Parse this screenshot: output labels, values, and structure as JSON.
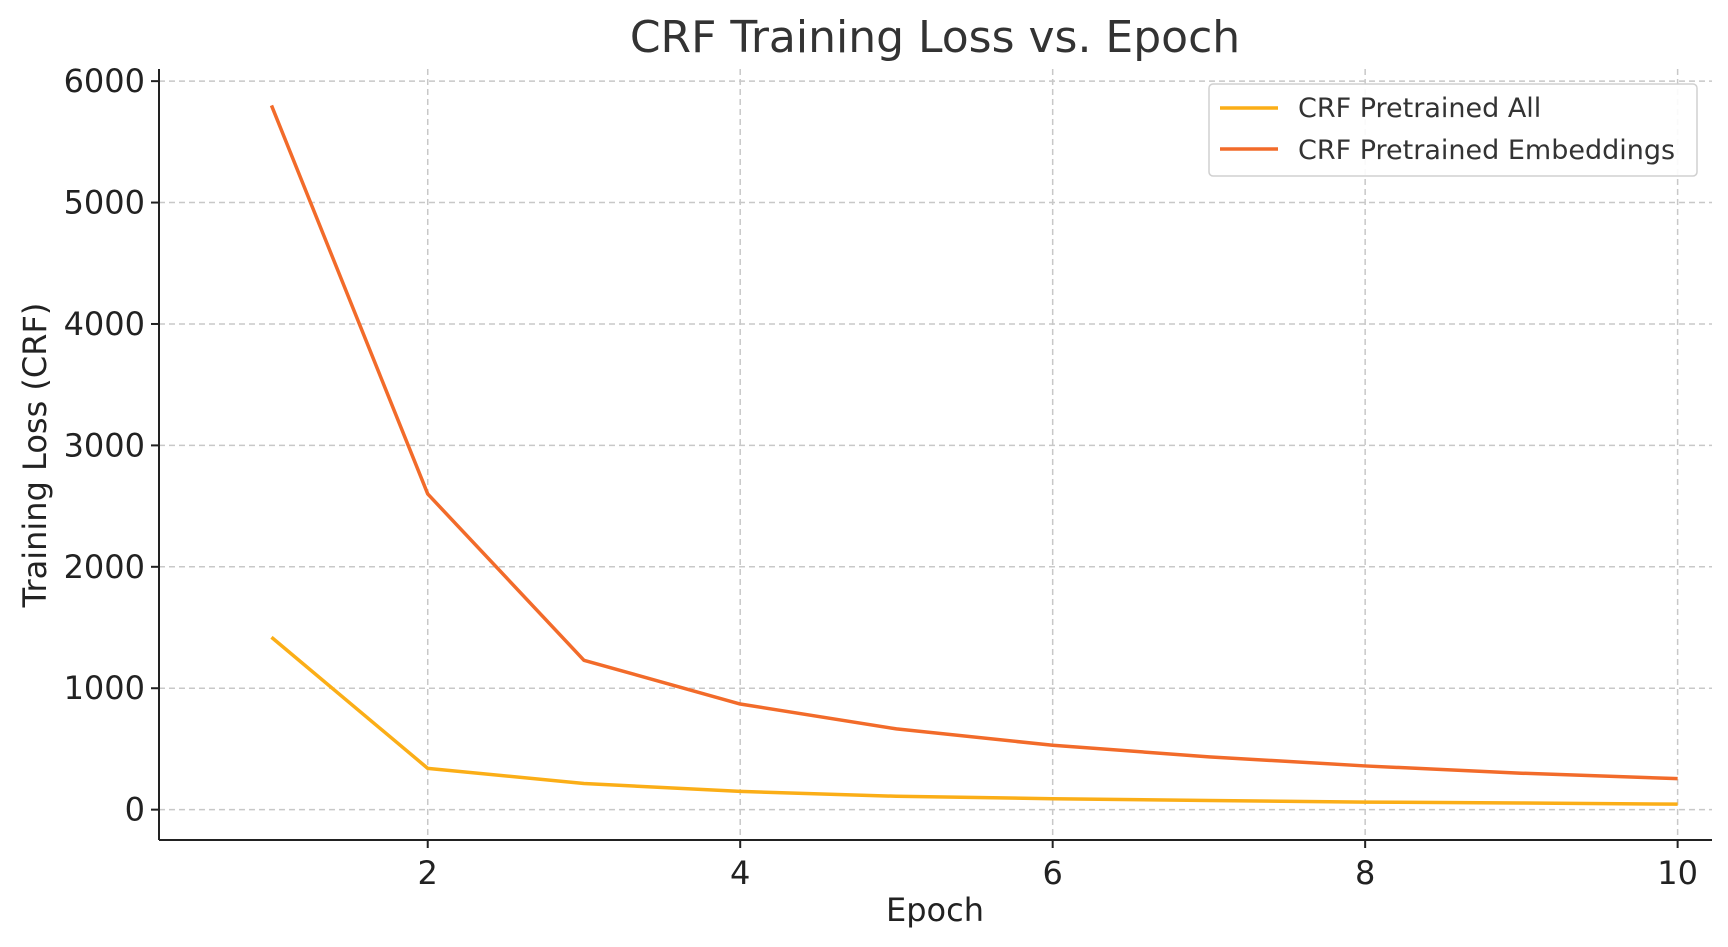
{
  "chart_data": {
    "type": "line",
    "title": "CRF Training Loss vs. Epoch",
    "xlabel": "Epoch",
    "ylabel": "Training Loss (CRF)",
    "x": [
      1,
      2,
      3,
      4,
      5,
      6,
      7,
      8,
      9,
      10
    ],
    "xlim": [
      0.28,
      10.22
    ],
    "ylim": [
      -250,
      6100
    ],
    "x_ticks": [
      2,
      4,
      6,
      8,
      10
    ],
    "x_tick_labels": [
      "2",
      "4",
      "6",
      "8",
      "10"
    ],
    "y_ticks": [
      0,
      1000,
      2000,
      3000,
      4000,
      5000,
      6000
    ],
    "y_tick_labels": [
      "0",
      "1000",
      "2000",
      "3000",
      "4000",
      "5000",
      "6000"
    ],
    "grid": true,
    "legend_position": "top-right",
    "series": [
      {
        "name": "CRF Pretrained All",
        "color": "#FBAE17",
        "values": [
          1420,
          340,
          215,
          150,
          110,
          90,
          75,
          62,
          55,
          45
        ]
      },
      {
        "name": "CRF Pretrained Embeddings",
        "color": "#F26B2A",
        "values": [
          5800,
          2600,
          1230,
          870,
          665,
          530,
          435,
          360,
          300,
          255
        ]
      }
    ]
  }
}
